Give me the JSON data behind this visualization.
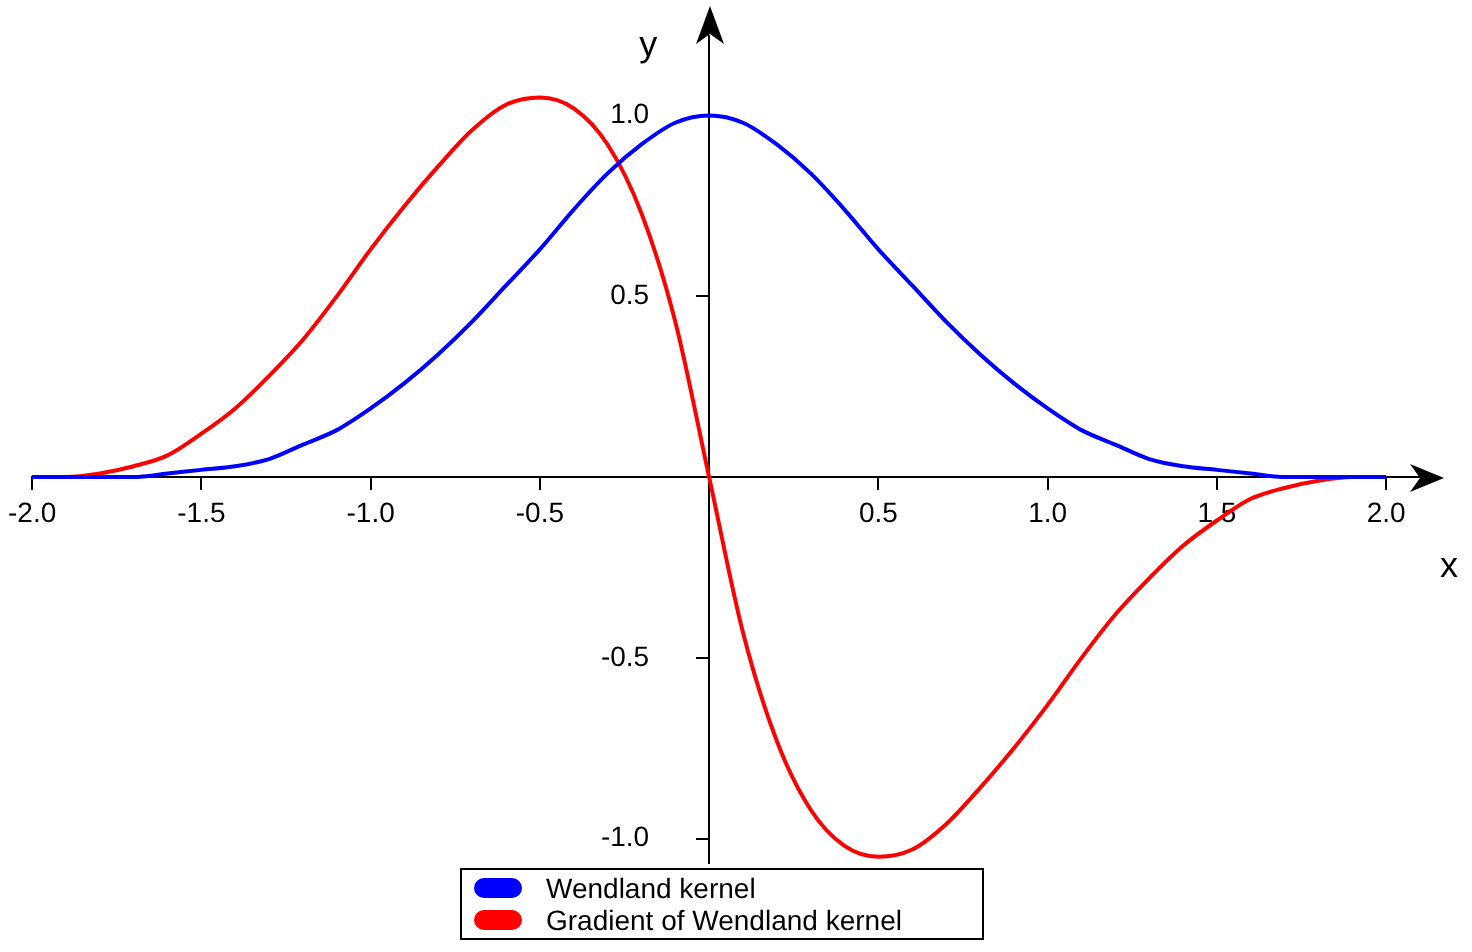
{
  "chart_data": {
    "type": "line",
    "xlabel": "x",
    "ylabel": "y",
    "x": [
      -2,
      -1.9,
      -1.8,
      -1.7,
      -1.6,
      -1.5,
      -1.4,
      -1.3,
      -1.2,
      -1.1,
      -1,
      -0.9,
      -0.8,
      -0.7,
      -0.6,
      -0.5,
      -0.4,
      -0.3,
      -0.2,
      -0.1,
      0,
      0.1,
      0.2,
      0.3,
      0.4,
      0.5,
      0.6,
      0.7,
      0.8,
      0.9,
      1,
      1.1,
      1.2,
      1.3,
      1.4,
      1.5,
      1.6,
      1.7,
      1.8,
      1.9,
      2
    ],
    "series": [
      {
        "name": "Wendland kernel",
        "color": "#0000ff",
        "values": [
          0,
          0,
          0,
          0,
          0.01,
          0.02,
          0.03,
          0.05,
          0.09,
          0.13,
          0.19,
          0.26,
          0.34,
          0.43,
          0.53,
          0.63,
          0.74,
          0.84,
          0.92,
          0.98,
          1,
          0.98,
          0.92,
          0.84,
          0.74,
          0.63,
          0.53,
          0.43,
          0.34,
          0.26,
          0.19,
          0.13,
          0.09,
          0.05,
          0.03,
          0.02,
          0.01,
          0,
          0,
          0,
          0
        ]
      },
      {
        "name": "Gradient of Wendland kernel",
        "color": "#ff0000",
        "values": [
          0,
          0,
          0.01,
          0.03,
          0.06,
          0.12,
          0.19,
          0.28,
          0.38,
          0.5,
          0.63,
          0.75,
          0.86,
          0.96,
          1.03,
          1.05,
          1.02,
          0.92,
          0.73,
          0.43,
          0,
          -0.43,
          -0.73,
          -0.92,
          -1.02,
          -1.05,
          -1.03,
          -0.96,
          -0.86,
          -0.75,
          -0.63,
          -0.5,
          -0.38,
          -0.28,
          -0.19,
          -0.12,
          -0.06,
          -0.03,
          -0.01,
          0,
          0
        ]
      }
    ],
    "xlim": [
      -2,
      2.1
    ],
    "ylim": [
      -1.07,
      1.22
    ],
    "xticks": [
      {
        "value": -2,
        "label": "-2.0"
      },
      {
        "value": -1.5,
        "label": "-1.5"
      },
      {
        "value": -1,
        "label": "-1.0"
      },
      {
        "value": -0.5,
        "label": "-0.5"
      },
      {
        "value": 0.5,
        "label": "0.5"
      },
      {
        "value": 1,
        "label": "1.0"
      },
      {
        "value": 1.5,
        "label": "1.5"
      },
      {
        "value": 2,
        "label": "2.0"
      }
    ],
    "yticks": [
      {
        "value": -1,
        "label": "-1.0"
      },
      {
        "value": -0.5,
        "label": "-0.5"
      },
      {
        "value": 0.5,
        "label": "0.5"
      },
      {
        "value": 1,
        "label": "1.0"
      }
    ],
    "grid": false,
    "legend": "bottom",
    "marker": "none",
    "line_style": "solid"
  }
}
